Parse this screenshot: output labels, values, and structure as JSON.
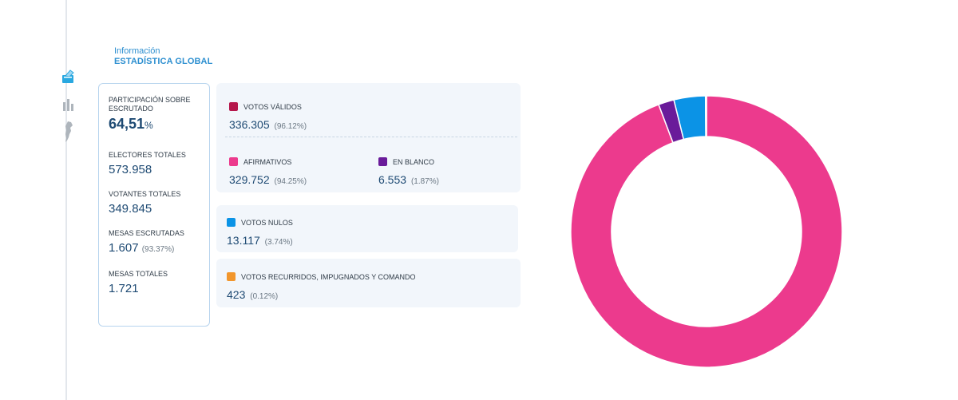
{
  "header": {
    "subtitle": "Información",
    "title": "ESTADÍSTICA GLOBAL"
  },
  "sidebar": {
    "icons": [
      "ballot-box-icon",
      "bar-chart-icon",
      "country-map-icon"
    ]
  },
  "stats": [
    {
      "label": "PARTICIPACIÓN SOBRE ESCRUTADO",
      "value": "64,51",
      "suffix": "%"
    },
    {
      "label": "ELECTORES TOTALES",
      "value": "573.958"
    },
    {
      "label": "VOTANTES TOTALES",
      "value": "349.845"
    },
    {
      "label": "MESAS ESCRUTADAS",
      "value": "1.607",
      "paren": "(93.37%)"
    },
    {
      "label": "MESAS TOTALES",
      "value": "1.721"
    }
  ],
  "votes": {
    "validos": {
      "label": "VOTOS VÁLIDOS",
      "value": "336.305",
      "pct": "(96.12%)",
      "color": "#b5174b"
    },
    "afirmativos": {
      "label": "AFIRMATIVOS",
      "value": "329.752",
      "pct": "(94.25%)",
      "color": "#ec3a8d"
    },
    "en_blanco": {
      "label": "EN BLANCO",
      "value": "6.553",
      "pct": "(1.87%)",
      "color": "#6a1b9a"
    },
    "nulos": {
      "label": "VOTOS NULOS",
      "value": "13.117",
      "pct": "(3.74%)",
      "color": "#0b93e6"
    },
    "recurridos": {
      "label": "VOTOS RECURRIDOS, IMPUGNADOS Y COMANDO",
      "value": "423",
      "pct": "(0.12%)",
      "color": "#f2962c"
    }
  },
  "chart_data": {
    "type": "pie",
    "donut": true,
    "categories": [
      "AFIRMATIVOS",
      "EN BLANCO",
      "VOTOS NULOS",
      "VOTOS RECURRIDOS, IMPUGNADOS Y COMANDO"
    ],
    "values": [
      329752,
      6553,
      13117,
      423
    ],
    "colors": [
      "#ec3a8d",
      "#6a1b9a",
      "#0b93e6",
      "#f2962c"
    ]
  }
}
